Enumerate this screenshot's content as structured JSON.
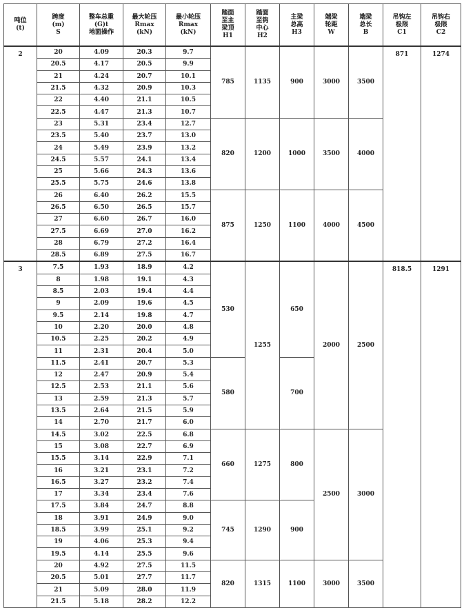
{
  "headers": [
    "吨位\n(t)",
    "跨度\n(m)\nS",
    "整车总重\n(G)t\n地面操作",
    "最大轮压\nRmax\n(kN)",
    "最小轮压\nRmax\n(kN)",
    "踏面\n至主\n梁顶\nH1",
    "踏面\n至钩\n中心\nH2",
    "主梁\n总高\nH3",
    "端梁\n轮距\nW",
    "端梁\n总长\nB",
    "吊钩左\n极限\nC1",
    "吊钩右\n极限\nC2"
  ],
  "sections": [
    {
      "tonnage": "2",
      "rows": [
        [
          "20",
          "4.09",
          "20.3",
          "9.7"
        ],
        [
          "20.5",
          "4.17",
          "20.5",
          "9.9"
        ],
        [
          "21",
          "4.24",
          "20.7",
          "10.1"
        ],
        [
          "21.5",
          "4.32",
          "20.9",
          "10.3"
        ],
        [
          "22",
          "4.40",
          "21.1",
          "10.5"
        ],
        [
          "22.5",
          "4.47",
          "21.3",
          "10.7"
        ],
        [
          "23",
          "5.31",
          "23.4",
          "12.7"
        ],
        [
          "23.5",
          "5.40",
          "23.7",
          "13.0"
        ],
        [
          "24",
          "5.49",
          "23.9",
          "13.2"
        ],
        [
          "24.5",
          "5.57",
          "24.1",
          "13.4"
        ],
        [
          "25",
          "5.66",
          "24.3",
          "13.6"
        ],
        [
          "25.5",
          "5.75",
          "24.6",
          "13.8"
        ],
        [
          "26",
          "6.40",
          "26.2",
          "15.5"
        ],
        [
          "26.5",
          "6.50",
          "26.5",
          "15.7"
        ],
        [
          "27",
          "6.60",
          "26.7",
          "16.0"
        ],
        [
          "27.5",
          "6.69",
          "27.0",
          "16.2"
        ],
        [
          "28",
          "6.79",
          "27.2",
          "16.4"
        ],
        [
          "28.5",
          "6.89",
          "27.5",
          "16.7"
        ]
      ],
      "merged": {
        "H1": [
          {
            "value": "785",
            "rows": 6
          },
          {
            "value": "820",
            "rows": 6
          },
          {
            "value": "875",
            "rows": 6
          }
        ],
        "H2": [
          {
            "value": "1135",
            "rows": 6
          },
          {
            "value": "1200",
            "rows": 6
          },
          {
            "value": "1250",
            "rows": 6
          }
        ],
        "H3": [
          {
            "value": "900",
            "rows": 6
          },
          {
            "value": "1000",
            "rows": 6
          },
          {
            "value": "1100",
            "rows": 6
          }
        ],
        "W": [
          {
            "value": "3000",
            "rows": 6
          },
          {
            "value": "3500",
            "rows": 6
          },
          {
            "value": "4000",
            "rows": 6
          }
        ],
        "B": [
          {
            "value": "3500",
            "rows": 6
          },
          {
            "value": "4000",
            "rows": 6
          },
          {
            "value": "4500",
            "rows": 6
          }
        ]
      },
      "C1": "871",
      "C2": "1274"
    },
    {
      "tonnage": "3",
      "rows": [
        [
          "7.5",
          "1.93",
          "18.9",
          "4.2"
        ],
        [
          "8",
          "1.98",
          "19.1",
          "4.3"
        ],
        [
          "8.5",
          "2.03",
          "19.4",
          "4.4"
        ],
        [
          "9",
          "2.09",
          "19.6",
          "4.5"
        ],
        [
          "9.5",
          "2.14",
          "19.8",
          "4.7"
        ],
        [
          "10",
          "2.20",
          "20.0",
          "4.8"
        ],
        [
          "10.5",
          "2.25",
          "20.2",
          "4.9"
        ],
        [
          "11",
          "2.31",
          "20.4",
          "5.0"
        ],
        [
          "11.5",
          "2.41",
          "20.7",
          "5.3"
        ],
        [
          "12",
          "2.47",
          "20.9",
          "5.4"
        ],
        [
          "12.5",
          "2.53",
          "21.1",
          "5.6"
        ],
        [
          "13",
          "2.59",
          "21.3",
          "5.7"
        ],
        [
          "13.5",
          "2.64",
          "21.5",
          "5.9"
        ],
        [
          "14",
          "2.70",
          "21.7",
          "6.0"
        ],
        [
          "14.5",
          "3.02",
          "22.5",
          "6.8"
        ],
        [
          "15",
          "3.08",
          "22.7",
          "6.9"
        ],
        [
          "15.5",
          "3.14",
          "22.9",
          "7.1"
        ],
        [
          "16",
          "3.21",
          "23.1",
          "7.2"
        ],
        [
          "16.5",
          "3.27",
          "23.2",
          "7.4"
        ],
        [
          "17",
          "3.34",
          "23.4",
          "7.6"
        ],
        [
          "17.5",
          "3.84",
          "24.7",
          "8.8"
        ],
        [
          "18",
          "3.91",
          "24.9",
          "9.0"
        ],
        [
          "18.5",
          "3.99",
          "25.1",
          "9.2"
        ],
        [
          "19",
          "4.06",
          "25.3",
          "9.4"
        ],
        [
          "19.5",
          "4.14",
          "25.5",
          "9.6"
        ],
        [
          "20",
          "4.92",
          "27.5",
          "11.5"
        ],
        [
          "20.5",
          "5.01",
          "27.7",
          "11.7"
        ],
        [
          "21",
          "5.09",
          "28.0",
          "11.9"
        ],
        [
          "21.5",
          "5.18",
          "28.2",
          "12.2"
        ]
      ],
      "merged": {
        "H1": [
          {
            "value": "530",
            "rows": 8
          },
          {
            "value": "580",
            "rows": 6
          },
          {
            "value": "660",
            "rows": 6
          },
          {
            "value": "745",
            "rows": 5
          },
          {
            "value": "820",
            "rows": 4
          }
        ],
        "H2": [
          {
            "value": "1255",
            "rows": 14
          },
          {
            "value": "1275",
            "rows": 6
          },
          {
            "value": "1290",
            "rows": 5
          },
          {
            "value": "1315",
            "rows": 4
          }
        ],
        "H3": [
          {
            "value": "650",
            "rows": 8
          },
          {
            "value": "700",
            "rows": 6
          },
          {
            "value": "800",
            "rows": 6
          },
          {
            "value": "900",
            "rows": 5
          },
          {
            "value": "1100",
            "rows": 4
          }
        ],
        "W": [
          {
            "value": "2000",
            "rows": 14
          },
          {
            "value": "2500",
            "rows": 11
          },
          {
            "value": "3000",
            "rows": 4
          }
        ],
        "B": [
          {
            "value": "2500",
            "rows": 14
          },
          {
            "value": "3000",
            "rows": 11
          },
          {
            "value": "3500",
            "rows": 4
          }
        ]
      },
      "C1": "818.5",
      "C2": "1291"
    }
  ]
}
